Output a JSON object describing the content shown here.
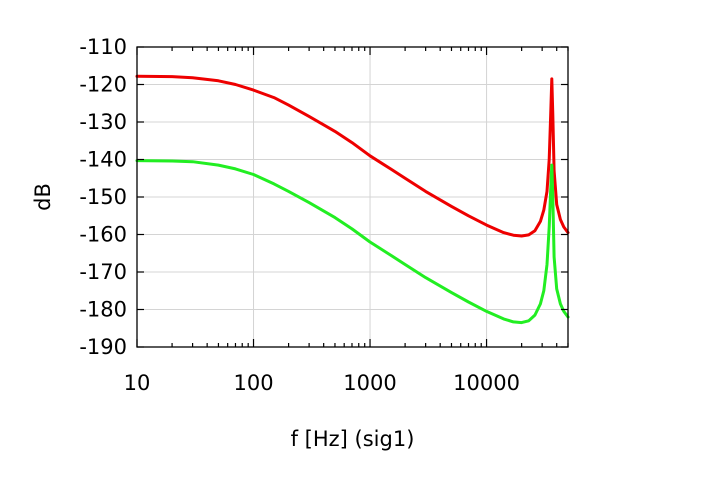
{
  "chart_data": {
    "type": "line",
    "title": "",
    "xlabel": "f [Hz] (sig1)",
    "ylabel": "dB",
    "xscale": "log",
    "xlim": [
      10,
      50000
    ],
    "ylim": [
      -190,
      -110
    ],
    "xticks": [
      10,
      100,
      1000,
      10000
    ],
    "xtick_labels": [
      "10",
      "100",
      "1000",
      "10000"
    ],
    "yticks": [
      -110,
      -120,
      -130,
      -140,
      -150,
      -160,
      -170,
      -180,
      -190
    ],
    "ytick_labels": [
      "-110",
      "-120",
      "-130",
      "-140",
      "-150",
      "-160",
      "-170",
      "-180",
      "-190"
    ],
    "grid": true,
    "legend": "none",
    "series": [
      {
        "color": "#ee0000",
        "x": [
          10,
          20,
          30,
          50,
          70,
          100,
          150,
          200,
          300,
          500,
          700,
          1000,
          1500,
          2000,
          3000,
          5000,
          7000,
          10000,
          14000,
          17000,
          20000,
          23000,
          26000,
          29000,
          31000,
          33000,
          34500,
          35500,
          36300,
          37000,
          38000,
          40000,
          43000,
          46000,
          50000
        ],
        "y": [
          -117.8,
          -117.9,
          -118.2,
          -119.0,
          -120.0,
          -121.5,
          -123.5,
          -125.5,
          -128.5,
          -132.5,
          -135.5,
          -139.0,
          -142.5,
          -145.0,
          -148.5,
          -152.5,
          -155.0,
          -157.5,
          -159.5,
          -160.2,
          -160.4,
          -160.1,
          -159.0,
          -156.5,
          -153.5,
          -148.5,
          -140.0,
          -128.0,
          -118.5,
          -128.0,
          -143.0,
          -152.0,
          -156.0,
          -158.0,
          -159.5
        ]
      },
      {
        "color": "#22ee22",
        "x": [
          10,
          20,
          30,
          50,
          70,
          100,
          150,
          200,
          300,
          500,
          700,
          1000,
          1500,
          2000,
          3000,
          5000,
          7000,
          10000,
          14000,
          17000,
          20000,
          23000,
          26000,
          29000,
          31000,
          33000,
          34500,
          35500,
          36300,
          37000,
          38000,
          40000,
          43000,
          46000,
          50000
        ],
        "y": [
          -140.3,
          -140.4,
          -140.6,
          -141.5,
          -142.5,
          -144.0,
          -146.5,
          -148.5,
          -151.5,
          -155.5,
          -158.5,
          -162.0,
          -165.5,
          -168.0,
          -171.5,
          -175.5,
          -178.0,
          -180.5,
          -182.5,
          -183.3,
          -183.5,
          -183.0,
          -181.5,
          -178.5,
          -175.0,
          -168.0,
          -158.0,
          -148.0,
          -141.5,
          -150.0,
          -166.0,
          -174.5,
          -178.5,
          -180.5,
          -182.0
        ]
      }
    ]
  }
}
